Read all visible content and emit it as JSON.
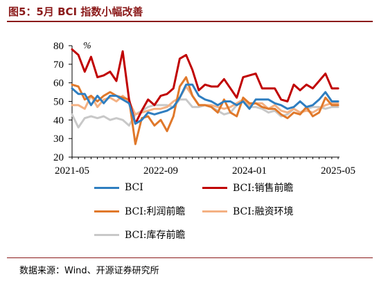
{
  "figure": {
    "title": "图5：5月 BCI 指数小幅改善",
    "source": "数据来源：Wind、开源证券研究所"
  },
  "colors": {
    "title": "#8b1a1a",
    "BCI": "#2f7ec0",
    "BCI_sales": "#c00000",
    "BCI_profit": "#e0782a",
    "BCI_finance": "#f4b183",
    "BCI_inventory": "#c8c8c8"
  },
  "chart_data": {
    "type": "line",
    "x_start": "2021-05",
    "x_end": "2025-05",
    "x_tick_labels": [
      "2021-05",
      "2022-09",
      "2024-01",
      "2025-05"
    ],
    "y_unit": "%",
    "ylim": [
      20,
      80
    ],
    "y_ticks": [
      "20",
      "30",
      "40",
      "50",
      "60",
      "70",
      "80"
    ],
    "grid": false,
    "legend_position": "bottom",
    "series": [
      {
        "name": "BCI",
        "color": "#2f7ec0",
        "values": [
          57,
          54,
          54,
          48,
          53,
          49,
          53,
          53,
          51,
          49,
          38,
          40,
          44,
          43,
          44,
          45,
          47,
          52,
          59,
          59,
          53,
          51,
          50,
          48,
          50,
          50,
          48,
          50,
          46,
          51,
          51,
          51,
          49,
          48,
          46,
          47,
          50,
          47,
          48,
          51,
          55,
          50,
          50
        ]
      },
      {
        "name": "BCI:销售前瞻",
        "color": "#c00000",
        "values": [
          78,
          75,
          66,
          74,
          63,
          64,
          66,
          61,
          77,
          51,
          38,
          45,
          51,
          48,
          53,
          54,
          57,
          73,
          75,
          67,
          56,
          59,
          58,
          58,
          62,
          57,
          52,
          63,
          64,
          65,
          57,
          57,
          57,
          51,
          50,
          59,
          56,
          59,
          57,
          61,
          65,
          57,
          57
        ]
      },
      {
        "name": "BCI:利润前瞻",
        "color": "#e0782a",
        "values": [
          59,
          58,
          51,
          53,
          50,
          53,
          55,
          53,
          52,
          51,
          27,
          41,
          42,
          37,
          40,
          34,
          42,
          58,
          63,
          53,
          48,
          48,
          47,
          44,
          51,
          44,
          42,
          52,
          49,
          49,
          47,
          46,
          46,
          43,
          41,
          44,
          43,
          47,
          42,
          44,
          52,
          48,
          48
        ]
      },
      {
        "name": "BCI:融资环境",
        "color": "#f4b183",
        "values": [
          48,
          48,
          46,
          53,
          47,
          51,
          52,
          50,
          53,
          50,
          43,
          44,
          45,
          46,
          46,
          47,
          50,
          52,
          58,
          53,
          48,
          48,
          48,
          47,
          46,
          47,
          49,
          51,
          48,
          49,
          49,
          46,
          48,
          45,
          44,
          46,
          44,
          45,
          44,
          46,
          48,
          49,
          49
        ]
      },
      {
        "name": "BCI:库存前瞻",
        "color": "#c8c8c8",
        "values": [
          43,
          36,
          41,
          42,
          41,
          42,
          40,
          41,
          40,
          37,
          43,
          45,
          47,
          48,
          48,
          48,
          47,
          51,
          51,
          47,
          47,
          48,
          47,
          45,
          43,
          44,
          48,
          51,
          47,
          47,
          46,
          44,
          45,
          42,
          43,
          46,
          44,
          46,
          47,
          47,
          46,
          47,
          47
        ]
      }
    ]
  },
  "legend": [
    {
      "label": "BCI",
      "color": "#2f7ec0"
    },
    {
      "label": "BCI:销售前瞻",
      "color": "#c00000"
    },
    {
      "label": "BCI:利润前瞻",
      "color": "#e0782a"
    },
    {
      "label": "BCI:融资环境",
      "color": "#f4b183"
    },
    {
      "label": "BCI:库存前瞻",
      "color": "#c8c8c8"
    }
  ]
}
